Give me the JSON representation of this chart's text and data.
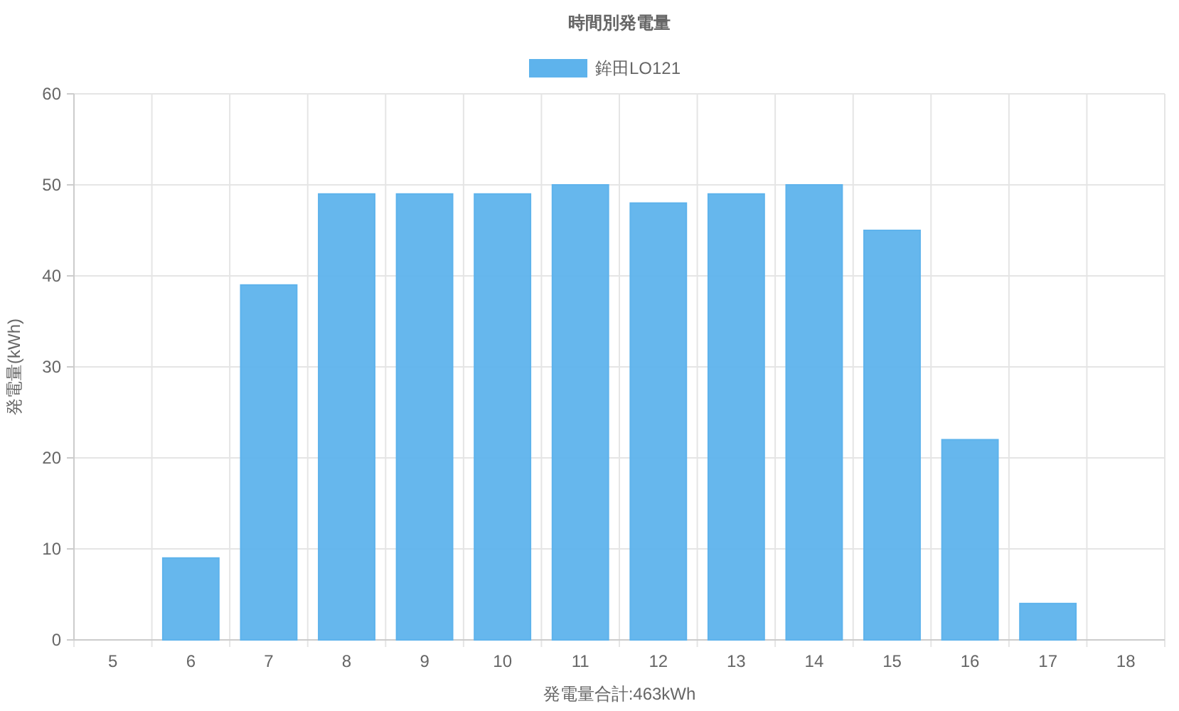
{
  "chart_data": {
    "type": "bar",
    "title": "時間別発電量",
    "xlabel": "発電量合計:463kWh",
    "ylabel": "発電量(kWh)",
    "categories": [
      "5",
      "6",
      "7",
      "8",
      "9",
      "10",
      "11",
      "12",
      "13",
      "14",
      "15",
      "16",
      "17",
      "18"
    ],
    "series": [
      {
        "name": "鉾田LO121",
        "color": "#5eb3ec",
        "values": [
          0,
          9,
          39,
          49,
          49,
          49,
          50,
          48,
          49,
          50,
          45,
          22,
          4,
          0
        ]
      }
    ],
    "ylim": [
      0,
      60
    ],
    "yticks": [
      0,
      10,
      20,
      30,
      40,
      50,
      60
    ],
    "grid": true,
    "legend": "top"
  }
}
